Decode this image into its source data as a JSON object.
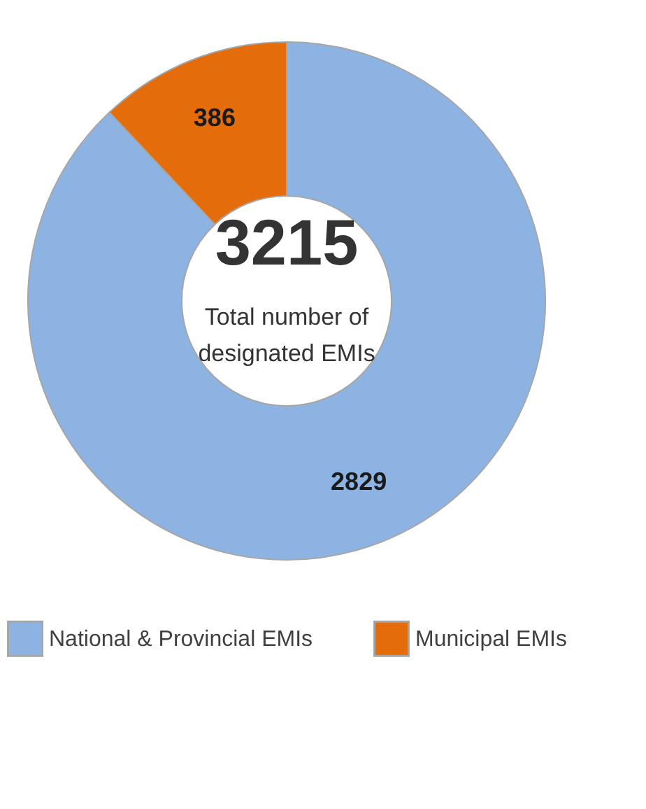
{
  "chart_data": {
    "type": "donut",
    "categories": [
      "National & Provincial EMIs",
      "Municipal EMIs"
    ],
    "values": [
      2829,
      386
    ],
    "colors": [
      "#8db3e2",
      "#e46c0a"
    ],
    "data_labels": true,
    "legend": "bottom",
    "annotations": [
      "3215",
      "Total number of designated EMIs"
    ]
  }
}
